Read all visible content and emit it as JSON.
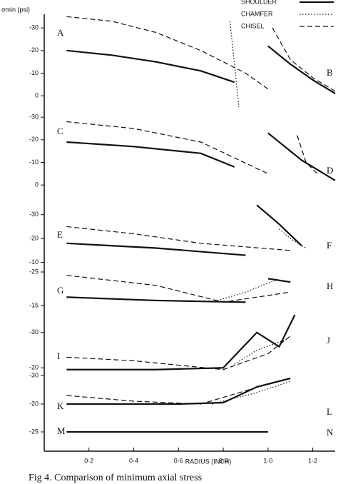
{
  "chart_data": {
    "type": "line",
    "ylabel": "σmin (psi)",
    "xlabel": "RADIUS (INCH)",
    "caption": "Fig 4. Comparison of minimum axial stress",
    "xlim": [
      0,
      1.3
    ],
    "xticks": [
      {
        "value": 0.2,
        "label": "0·2"
      },
      {
        "value": 0.4,
        "label": "0·4"
      },
      {
        "value": 0.6,
        "label": "0·6"
      },
      {
        "value": 0.8,
        "label": "0·8"
      },
      {
        "value": 1.0,
        "label": "1·0"
      },
      {
        "value": 1.2,
        "label": "1·2"
      }
    ],
    "legend": [
      {
        "name": "SHOULDER",
        "dash": "solid"
      },
      {
        "name": "CHAMFER",
        "dash": "dotted"
      },
      {
        "name": "CHISEL",
        "dash": "dashed"
      }
    ],
    "panels": [
      {
        "left_label": "A",
        "right_label": "B",
        "ylim": [
          5,
          -37
        ],
        "yticks": [
          -30,
          -20,
          -10,
          0
        ],
        "series": [
          {
            "style": 0,
            "x": [
              0.1,
              0.3,
              0.5,
              0.7,
              0.85
            ],
            "values": [
              -20,
              -18,
              -15,
              -11,
              -6
            ]
          },
          {
            "style": 2,
            "x": [
              0.1,
              0.3,
              0.5,
              0.7,
              0.9,
              1.0
            ],
            "values": [
              -35,
              -33,
              -28,
              -20,
              -10,
              -3
            ]
          },
          {
            "style": 0,
            "x": [
              1.0,
              1.1,
              1.2,
              1.3
            ],
            "values": [
              -22,
              -14,
              -7,
              -1
            ]
          },
          {
            "style": 2,
            "x": [
              1.02,
              1.1,
              1.2,
              1.3
            ],
            "values": [
              -30,
              -16,
              -8,
              -2
            ]
          },
          {
            "style": 1,
            "x": [
              0.83,
              0.87
            ],
            "values": [
              -33,
              5
            ]
          }
        ]
      },
      {
        "left_label": "C",
        "right_label": "D",
        "ylim": [
          5,
          -37
        ],
        "yticks": [
          -30,
          -20,
          -10,
          0
        ],
        "series": [
          {
            "style": 0,
            "x": [
              0.1,
              0.4,
              0.7,
              0.85
            ],
            "values": [
              -19,
              -17,
              -14,
              -8
            ]
          },
          {
            "style": 2,
            "x": [
              0.1,
              0.4,
              0.7,
              1.0
            ],
            "values": [
              -28,
              -25,
              -19,
              -5
            ]
          },
          {
            "style": 0,
            "x": [
              1.0,
              1.15,
              1.3
            ],
            "values": [
              -23,
              -11,
              -2
            ]
          },
          {
            "style": 2,
            "x": [
              1.13,
              1.17,
              1.22
            ],
            "values": [
              -22,
              -10,
              -5
            ]
          }
        ]
      },
      {
        "left_label": "E",
        "right_label": "F",
        "ylim": [
          0,
          -35
        ],
        "yticks": [
          -30,
          -20,
          -10
        ],
        "series": [
          {
            "style": 0,
            "x": [
              0.1,
              0.5,
              0.9
            ],
            "values": [
              -18,
              -16,
              -13
            ]
          },
          {
            "style": 2,
            "x": [
              0.1,
              0.4,
              0.7,
              1.1
            ],
            "values": [
              -25,
              -22,
              -18,
              -15
            ]
          },
          {
            "style": 0,
            "x": [
              0.95,
              1.05,
              1.15
            ],
            "values": [
              -34,
              -26,
              -17
            ]
          },
          {
            "style": 1,
            "x": [
              1.05,
              1.1,
              1.17
            ],
            "values": [
              -24,
              -20,
              -16
            ]
          }
        ]
      },
      {
        "left_label": "G",
        "right_label": "H",
        "ylim": [
          -10,
          -30
        ],
        "yticks": [
          -25,
          -15
        ],
        "series": [
          {
            "style": 0,
            "x": [
              0.1,
              0.5,
              0.9
            ],
            "values": [
              -17.5,
              -16.5,
              -16
            ]
          },
          {
            "style": 2,
            "x": [
              0.1,
              0.5,
              0.8,
              1.1
            ],
            "values": [
              -24,
              -21,
              -16,
              -19
            ]
          },
          {
            "style": 0,
            "x": [
              1.0,
              1.1
            ],
            "values": [
              -23,
              -22
            ]
          },
          {
            "style": 1,
            "x": [
              0.75,
              0.9,
              1.05
            ],
            "values": [
              -16,
              -19,
              -23
            ]
          }
        ]
      },
      {
        "left_label": "I",
        "right_label": "J",
        "ylim": [
          -15,
          -35
        ],
        "yticks": [
          -30,
          -20
        ],
        "series": [
          {
            "style": 0,
            "x": [
              0.1,
              0.5,
              0.8,
              0.95,
              1.05,
              1.12
            ],
            "values": [
              -19.5,
              -19.5,
              -20,
              -30,
              -26,
              -35
            ]
          },
          {
            "style": 2,
            "x": [
              0.1,
              0.4,
              0.8,
              1.0,
              1.1
            ],
            "values": [
              -23,
              -22,
              -19.5,
              -24,
              -29
            ]
          },
          {
            "style": 1,
            "x": [
              0.85,
              0.95,
              1.08
            ],
            "values": [
              -21,
              -25,
              -28
            ]
          }
        ]
      },
      {
        "left_label": "K",
        "right_label": "L",
        "ylim": [
          -15,
          -35
        ],
        "yticks": [
          -30,
          -20
        ],
        "series": [
          {
            "style": 0,
            "x": [
              0.1,
              0.6,
              0.8,
              0.95,
              1.1
            ],
            "values": [
              -20,
              -20,
              -20.5,
              -26,
              -29
            ]
          },
          {
            "style": 2,
            "x": [
              0.1,
              0.4,
              0.7,
              1.0
            ],
            "values": [
              -23,
              -21,
              -20,
              -27
            ]
          },
          {
            "style": 1,
            "x": [
              0.75,
              0.95,
              1.1
            ],
            "values": [
              -20,
              -24,
              -28
            ]
          }
        ]
      },
      {
        "left_label": "M",
        "right_label": "N",
        "ylim": [
          -20,
          -30
        ],
        "yticks": [
          -25
        ],
        "series": [
          {
            "style": 0,
            "x": [
              0.1,
              1.0
            ],
            "values": [
              -25,
              -25
            ]
          }
        ]
      }
    ]
  }
}
